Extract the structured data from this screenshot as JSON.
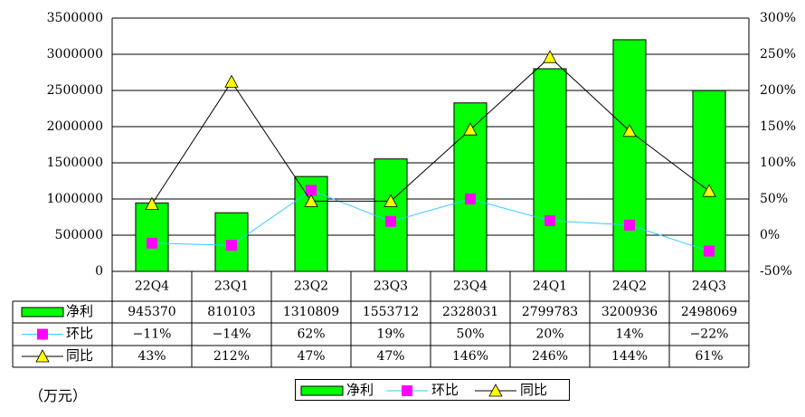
{
  "chart_data": {
    "type": "bar",
    "categories": [
      "22Q4",
      "23Q1",
      "23Q2",
      "23Q3",
      "23Q4",
      "24Q1",
      "24Q2",
      "24Q3"
    ],
    "series": [
      {
        "name": "净利",
        "type": "bar",
        "axis": "left",
        "values": [
          945370,
          810103,
          1310809,
          1553712,
          2328031,
          2799783,
          3200936,
          2498069
        ],
        "color": "#00ff00"
      },
      {
        "name": "环比",
        "type": "line",
        "axis": "right",
        "values": [
          -11,
          -14,
          62,
          19,
          50,
          20,
          14,
          -22
        ],
        "labels": [
          "-11%",
          "-14%",
          "62%",
          "19%",
          "50%",
          "20%",
          "14%",
          "-22%"
        ],
        "color": "#33ccff",
        "marker_color": "#ff00ff"
      },
      {
        "name": "同比",
        "type": "line",
        "axis": "right",
        "values": [
          43,
          212,
          47,
          47,
          146,
          246,
          144,
          61
        ],
        "labels": [
          "43%",
          "212%",
          "47%",
          "47%",
          "146%",
          "246%",
          "144%",
          "61%"
        ],
        "color": "#000000",
        "marker_color": "#ffff00"
      }
    ],
    "ylim": [
      0,
      3500000
    ],
    "y2lim": [
      -50,
      300
    ],
    "yticks": [
      "0",
      "500000",
      "1000000",
      "1500000",
      "2000000",
      "2500000",
      "3000000",
      "3500000"
    ],
    "y2ticks": [
      "-50%",
      "0%",
      "50%",
      "100%",
      "150%",
      "200%",
      "250%",
      "300%"
    ],
    "unit_label": "（万元）",
    "grid": true,
    "legend_position": "bottom"
  }
}
